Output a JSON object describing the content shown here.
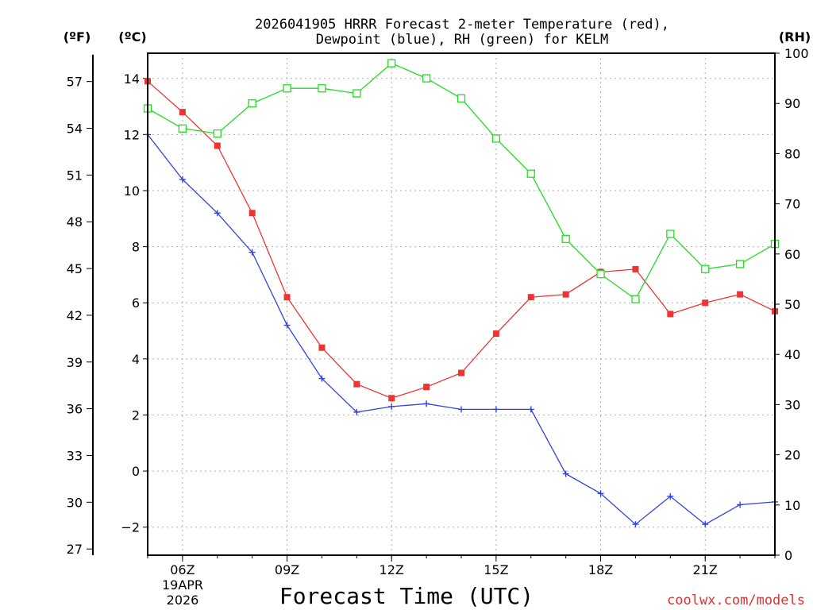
{
  "chart_data": {
    "type": "line",
    "title_line1": "2026041905 HRRR Forecast 2-meter Temperature (red),",
    "title_line2": "Dewpoint (blue), RH (green) for KELM",
    "xlabel": "Forecast Time (UTC)",
    "credit": "coolwx.com/models",
    "date_label_1": "19APR",
    "date_label_2": "2026",
    "units": {
      "fahrenheit": "(ºF)",
      "celsius": "(ºC)",
      "rh": "(RH)"
    },
    "hours": [
      5,
      6,
      7,
      8,
      9,
      10,
      11,
      12,
      13,
      14,
      15,
      16,
      17,
      18,
      19,
      20,
      21,
      22,
      23
    ],
    "x_ticks": [
      {
        "hour": 6,
        "label": "06Z"
      },
      {
        "hour": 9,
        "label": "09Z"
      },
      {
        "hour": 12,
        "label": "12Z"
      },
      {
        "hour": 15,
        "label": "15Z"
      },
      {
        "hour": 18,
        "label": "18Z"
      },
      {
        "hour": 21,
        "label": "21Z"
      }
    ],
    "xlim": [
      5,
      23
    ],
    "ylim_celsius": [
      -3,
      14.9
    ],
    "ylim_rh": [
      0,
      100
    ],
    "celsius_ticks": [
      -2,
      0,
      2,
      4,
      6,
      8,
      10,
      12,
      14
    ],
    "celsius_tick_labels": [
      "−2",
      "0",
      "2",
      "4",
      "6",
      "8",
      "10",
      "12",
      "14"
    ],
    "fahrenheit_ticks": [
      27,
      30,
      33,
      36,
      39,
      42,
      45,
      48,
      51,
      54,
      57
    ],
    "fahrenheit_tick_labels": [
      "27",
      "30",
      "33",
      "36",
      "39",
      "42",
      "45",
      "48",
      "51",
      "54",
      "57"
    ],
    "rh_ticks": [
      0,
      10,
      20,
      30,
      40,
      50,
      60,
      70,
      80,
      90,
      100
    ],
    "rh_tick_labels": [
      "0",
      "10",
      "20",
      "30",
      "40",
      "50",
      "60",
      "70",
      "80",
      "90",
      "100"
    ],
    "series": [
      {
        "name": "2-meter Temperature",
        "axis": "celsius",
        "color": "#ee3333",
        "marker": "filled-square",
        "values": [
          13.9,
          12.8,
          11.6,
          9.2,
          6.2,
          4.4,
          3.1,
          2.6,
          3.0,
          3.5,
          4.9,
          6.2,
          6.3,
          7.1,
          7.2,
          5.6,
          6.0,
          6.3,
          5.7
        ]
      },
      {
        "name": "Dewpoint",
        "axis": "celsius",
        "color": "#3344dd",
        "marker": "plus",
        "values": [
          12.0,
          10.4,
          9.2,
          7.8,
          5.2,
          3.3,
          2.1,
          2.3,
          2.4,
          2.2,
          2.2,
          2.2,
          -0.1,
          -0.8,
          -1.9,
          -0.9,
          -1.9,
          -1.2,
          -1.1
        ]
      },
      {
        "name": "Relative Humidity",
        "axis": "rh",
        "color": "#22dd22",
        "marker": "open-square",
        "values": [
          89,
          85,
          84,
          90,
          93,
          93,
          92,
          98,
          95,
          91,
          83,
          76,
          63,
          56,
          51,
          64,
          57,
          58,
          62
        ]
      }
    ]
  }
}
